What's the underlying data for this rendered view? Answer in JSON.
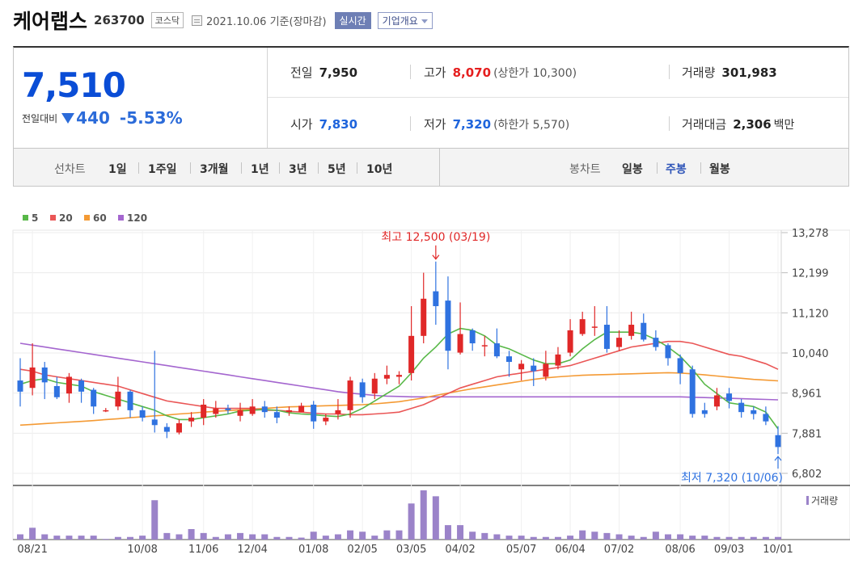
{
  "header": {
    "company": "케어랩스",
    "code": "263700",
    "market": "코스닥",
    "date": "2021.10.06 기준(장마감)",
    "realtime_button": "실시간",
    "overview_button": "기업개요"
  },
  "quote": {
    "price": "7,510",
    "change_label": "전일대비",
    "change": "440",
    "change_pct": "-5.53%",
    "prev_label": "전일",
    "prev": "7,950",
    "open_label": "시가",
    "open": "7,830",
    "high_label": "고가",
    "high": "8,070",
    "upper_limit": "(상한가 10,300)",
    "low_label": "저가",
    "low": "7,320",
    "lower_limit": "(하한가 5,570)",
    "volume_label": "거래량",
    "volume": "301,983",
    "amount_label": "거래대금",
    "amount": "2,306",
    "amount_unit": "백만"
  },
  "toolbar": {
    "line_title": "선차트",
    "line_periods": [
      "1일",
      "1주일",
      "3개월",
      "1년",
      "3년",
      "5년",
      "10년"
    ],
    "candle_title": "봉차트",
    "candle_periods": [
      "일봉",
      "주봉",
      "월봉"
    ],
    "selected_candle": "주봉"
  },
  "colors": {
    "up": "#e02828",
    "down": "#2f72e0",
    "ma5": "#58b848",
    "ma20": "#ea5656",
    "ma60": "#f49a34",
    "ma120": "#a466cf",
    "volume": "#9b83c9"
  },
  "chart_data": {
    "type": "candlestick",
    "legend": [
      "5",
      "20",
      "60",
      "120"
    ],
    "y_ticks": [
      "13,278",
      "12,199",
      "11,120",
      "10,040",
      "8,961",
      "7,881",
      "6,802"
    ],
    "x_ticks": [
      "08/21",
      "10/08",
      "11/06",
      "12/04",
      "01/08",
      "02/05",
      "03/05",
      "04/02",
      "05/07",
      "06/04",
      "07/02",
      "08/06",
      "09/03",
      "10/01"
    ],
    "ylim": [
      6802,
      13278
    ],
    "annotation_high": "최고 12,500 (03/19)",
    "annotation_low": "최저 7,320 (10/06)",
    "volume_label": "거래량",
    "candles": [
      [
        9300,
        9000,
        9900,
        8600
      ],
      [
        9100,
        9650,
        10300,
        8900
      ],
      [
        9650,
        9250,
        9800,
        8800
      ],
      [
        9150,
        8850,
        9400,
        8800
      ],
      [
        8950,
        9400,
        9500,
        8700
      ],
      [
        9300,
        9000,
        9350,
        8700
      ],
      [
        9050,
        8600,
        9100,
        8400
      ],
      [
        8500,
        8500,
        8560,
        8450
      ],
      [
        8600,
        9000,
        9400,
        8500
      ],
      [
        9000,
        8500,
        9050,
        8300
      ],
      [
        8500,
        8300,
        8600,
        8200
      ],
      [
        8250,
        8100,
        10100,
        7900
      ],
      [
        8050,
        7920,
        8150,
        7750
      ],
      [
        7900,
        8150,
        8250,
        7850
      ],
      [
        8200,
        8300,
        8450,
        8050
      ],
      [
        8300,
        8650,
        8800,
        8100
      ],
      [
        8400,
        8550,
        8750,
        8300
      ],
      [
        8550,
        8500,
        8650,
        8400
      ],
      [
        8350,
        8500,
        8700,
        8200
      ],
      [
        8400,
        8600,
        8800,
        8350
      ],
      [
        8600,
        8450,
        8750,
        8300
      ],
      [
        8450,
        8300,
        8600,
        8150
      ],
      [
        8450,
        8500,
        8600,
        8350
      ],
      [
        8450,
        8620,
        8700,
        8450
      ],
      [
        8650,
        8200,
        8750,
        8000
      ],
      [
        8200,
        8300,
        8400,
        8100
      ],
      [
        8400,
        8500,
        8800,
        8250
      ],
      [
        8500,
        9300,
        9400,
        8300
      ],
      [
        9250,
        8850,
        9350,
        8700
      ],
      [
        8950,
        9350,
        9500,
        8800
      ],
      [
        9350,
        9450,
        9700,
        9200
      ],
      [
        9400,
        9450,
        9550,
        9200
      ],
      [
        9500,
        10500,
        11300,
        9300
      ],
      [
        10500,
        11500,
        12200,
        10300
      ],
      [
        11700,
        11300,
        12500,
        10800
      ],
      [
        11450,
        10100,
        12100,
        9600
      ],
      [
        10050,
        10550,
        11400,
        10000
      ],
      [
        10650,
        10300,
        10700,
        10100
      ],
      [
        10250,
        10250,
        10500,
        9950
      ],
      [
        10300,
        9950,
        10700,
        9900
      ],
      [
        9950,
        9800,
        10100,
        9400
      ],
      [
        9600,
        9750,
        9850,
        9300
      ],
      [
        9700,
        9550,
        9900,
        9150
      ],
      [
        9400,
        9750,
        10100,
        9300
      ],
      [
        9700,
        10000,
        10200,
        9600
      ],
      [
        10050,
        10650,
        10950,
        9950
      ],
      [
        10550,
        10950,
        11150,
        10500
      ],
      [
        10750,
        10750,
        11300,
        10500
      ],
      [
        10800,
        10150,
        11300,
        10050
      ],
      [
        10200,
        10450,
        10650,
        10100
      ],
      [
        10500,
        10800,
        11150,
        10400
      ],
      [
        10850,
        10400,
        11100,
        10350
      ],
      [
        10450,
        10200,
        10650,
        10100
      ],
      [
        10250,
        9900,
        10300,
        9700
      ],
      [
        9900,
        9500,
        10000,
        9200
      ],
      [
        9600,
        8400,
        9700,
        8300
      ],
      [
        8500,
        8400,
        8700,
        8300
      ],
      [
        8600,
        8900,
        9100,
        8500
      ],
      [
        8950,
        8750,
        9100,
        8550
      ],
      [
        8700,
        8450,
        8800,
        8300
      ],
      [
        8500,
        8400,
        8600,
        8250
      ],
      [
        8400,
        8200,
        8600,
        8100
      ],
      [
        7830,
        7510,
        8070,
        7320
      ]
    ],
    "ma5": [
      9200,
      9300,
      9350,
      9250,
      9200,
      9150,
      9000,
      8900,
      8800,
      8700,
      8600,
      8500,
      8350,
      8250,
      8250,
      8300,
      8350,
      8400,
      8480,
      8500,
      8520,
      8500,
      8430,
      8400,
      8380,
      8350,
      8330,
      8400,
      8550,
      8750,
      8950,
      9150,
      9500,
      9900,
      10200,
      10550,
      10700,
      10650,
      10500,
      10250,
      10150,
      10000,
      9850,
      9750,
      9750,
      9850,
      10150,
      10400,
      10600,
      10600,
      10600,
      10550,
      10400,
      10200,
      9950,
      9600,
      9200,
      8950,
      8700,
      8650,
      8600,
      8450,
      8000
    ],
    "ma20": [
      9600,
      9550,
      9450,
      9400,
      9350,
      9300,
      9250,
      9200,
      9150,
      9050,
      8950,
      8850,
      8750,
      8700,
      8650,
      8600,
      8550,
      8550,
      8550,
      8550,
      8500,
      8500,
      8470,
      8450,
      8420,
      8400,
      8400,
      8380,
      8380,
      8400,
      8420,
      8450,
      8550,
      8650,
      8800,
      8950,
      9100,
      9200,
      9300,
      9400,
      9450,
      9500,
      9550,
      9600,
      9650,
      9700,
      9800,
      9900,
      10000,
      10100,
      10200,
      10250,
      10300,
      10350,
      10350,
      10300,
      10200,
      10100,
      10000,
      9950,
      9850,
      9750,
      9600
    ],
    "ma60": [
      8100,
      8120,
      8140,
      8160,
      8180,
      8200,
      8220,
      8250,
      8270,
      8300,
      8320,
      8350,
      8370,
      8400,
      8420,
      8450,
      8470,
      8490,
      8510,
      8530,
      8550,
      8570,
      8590,
      8600,
      8610,
      8620,
      8630,
      8640,
      8650,
      8670,
      8700,
      8730,
      8780,
      8830,
      8900,
      8960,
      9020,
      9080,
      9130,
      9180,
      9230,
      9280,
      9330,
      9370,
      9400,
      9420,
      9440,
      9450,
      9460,
      9470,
      9480,
      9490,
      9500,
      9510,
      9500,
      9480,
      9450,
      9420,
      9390,
      9360,
      9330,
      9310,
      9290
    ],
    "ma120": [
      10300,
      10250,
      10200,
      10150,
      10100,
      10050,
      10000,
      9950,
      9900,
      9850,
      9800,
      9750,
      9700,
      9650,
      9600,
      9550,
      9500,
      9450,
      9400,
      9350,
      9300,
      9250,
      9200,
      9150,
      9100,
      9050,
      9000,
      8960,
      8930,
      8900,
      8880,
      8870,
      8860,
      8860,
      8860,
      8860,
      8860,
      8860,
      8860,
      8860,
      8860,
      8860,
      8860,
      8860,
      8860,
      8860,
      8860,
      8860,
      8860,
      8860,
      8860,
      8860,
      8860,
      8860,
      8860,
      8850,
      8840,
      8830,
      8820,
      8810,
      8800,
      8790,
      8780
    ],
    "volume": [
      8,
      18,
      8,
      6,
      6,
      6,
      6,
      1,
      4,
      4,
      6,
      60,
      10,
      8,
      16,
      10,
      4,
      8,
      10,
      8,
      8,
      4,
      4,
      3,
      12,
      6,
      8,
      14,
      12,
      6,
      14,
      14,
      55,
      75,
      66,
      22,
      22,
      12,
      10,
      8,
      6,
      6,
      4,
      4,
      4,
      6,
      14,
      12,
      10,
      8,
      6,
      4,
      12,
      8,
      8,
      6,
      6,
      4,
      4,
      4,
      4,
      4,
      4
    ]
  }
}
